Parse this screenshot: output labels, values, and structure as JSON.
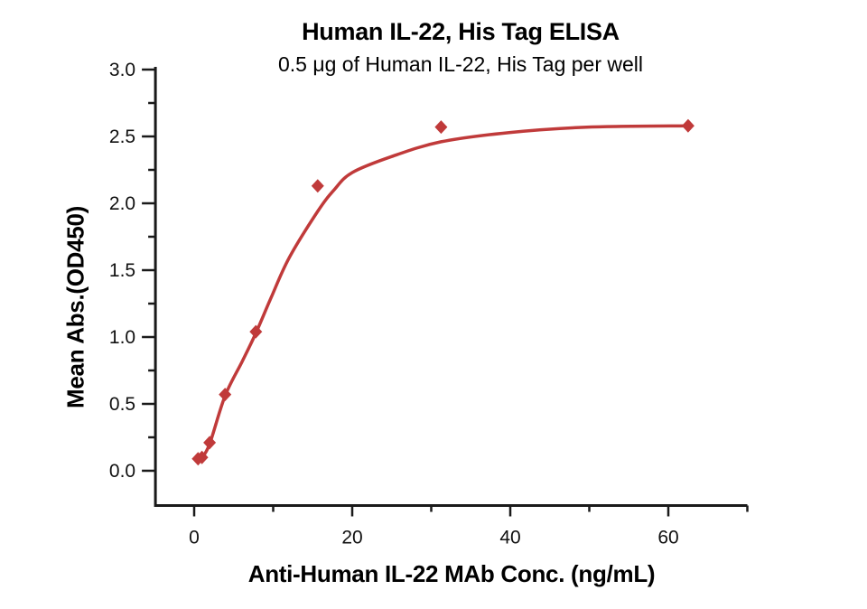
{
  "chart_data": {
    "type": "scatter",
    "title": "Human IL-22, His Tag ELISA",
    "subtitle": "0.5 μg of Human IL-22, His Tag per well",
    "xlabel": "Anti-Human IL-22 MAb Conc. (ng/mL)",
    "ylabel": "Mean Abs.(OD450)",
    "xlim": [
      -4.9,
      70
    ],
    "ylim": [
      -0.26,
      3.02
    ],
    "grid": false,
    "legend": false,
    "marker": "diamond",
    "series_color": "#C03A3A",
    "axis_color": "#1A1A1A",
    "x_axis": {
      "major_ticks": [
        0,
        20,
        40,
        60
      ],
      "major_tick_labels": [
        "0",
        "20",
        "40",
        "60"
      ],
      "minor_ticks": [
        10,
        30,
        50,
        70
      ]
    },
    "y_axis": {
      "major_ticks": [
        0,
        0.5,
        1,
        1.5,
        2,
        2.5,
        3
      ],
      "major_tick_labels": [
        "0.0",
        "0.5",
        "1.0",
        "1.5",
        "2.0",
        "2.5",
        "3.0"
      ],
      "minor_ticks": [
        0.25,
        0.75,
        1.25,
        1.75,
        2.25,
        2.75
      ]
    },
    "points": [
      [
        0.49,
        0.09
      ],
      [
        0.98,
        0.1
      ],
      [
        1.95,
        0.21
      ],
      [
        3.91,
        0.57
      ],
      [
        7.81,
        1.04
      ],
      [
        15.63,
        2.13
      ],
      [
        31.25,
        2.57
      ],
      [
        62.5,
        2.58
      ]
    ],
    "fit_curve": [
      [
        0.49,
        0.09
      ],
      [
        0.98,
        0.1
      ],
      [
        1.95,
        0.2
      ],
      [
        3.91,
        0.56
      ],
      [
        6.1,
        0.82
      ],
      [
        7.81,
        1.03
      ],
      [
        9.7,
        1.29
      ],
      [
        12,
        1.59
      ],
      [
        15.63,
        1.94
      ],
      [
        17.7,
        2.1
      ],
      [
        20,
        2.23
      ],
      [
        25,
        2.35
      ],
      [
        31.25,
        2.46
      ],
      [
        40,
        2.53
      ],
      [
        50,
        2.57
      ],
      [
        62.5,
        2.58
      ]
    ]
  }
}
